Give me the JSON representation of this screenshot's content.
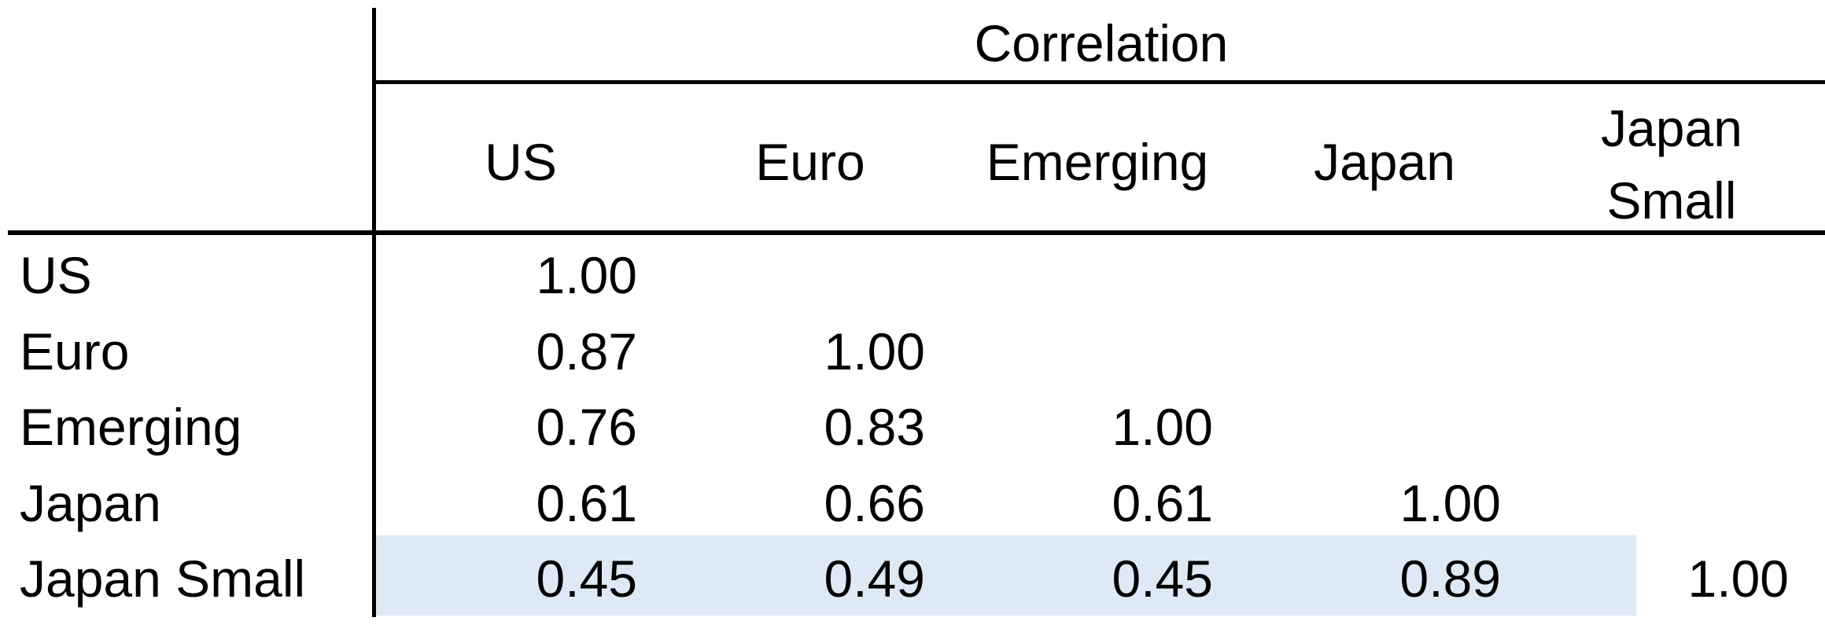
{
  "chart_data": {
    "type": "table",
    "title": "Correlation",
    "columns": [
      "US",
      "Euro",
      "Emerging",
      "Japan",
      "Japan Small"
    ],
    "rows": [
      {
        "label": "US",
        "values": [
          "1.00",
          "",
          "",
          "",
          ""
        ]
      },
      {
        "label": "Euro",
        "values": [
          "0.87",
          "1.00",
          "",
          "",
          ""
        ]
      },
      {
        "label": "Emerging",
        "values": [
          "0.76",
          "0.83",
          "1.00",
          "",
          ""
        ]
      },
      {
        "label": "Japan",
        "values": [
          "0.61",
          "0.66",
          "0.61",
          "1.00",
          ""
        ]
      },
      {
        "label": "Japan Small",
        "values": [
          "0.45",
          "0.49",
          "0.45",
          "0.89",
          "1.00"
        ]
      }
    ],
    "highlight": {
      "row": 4,
      "columns": [
        0,
        1,
        2,
        3
      ],
      "color": "#ddeaf6"
    }
  }
}
